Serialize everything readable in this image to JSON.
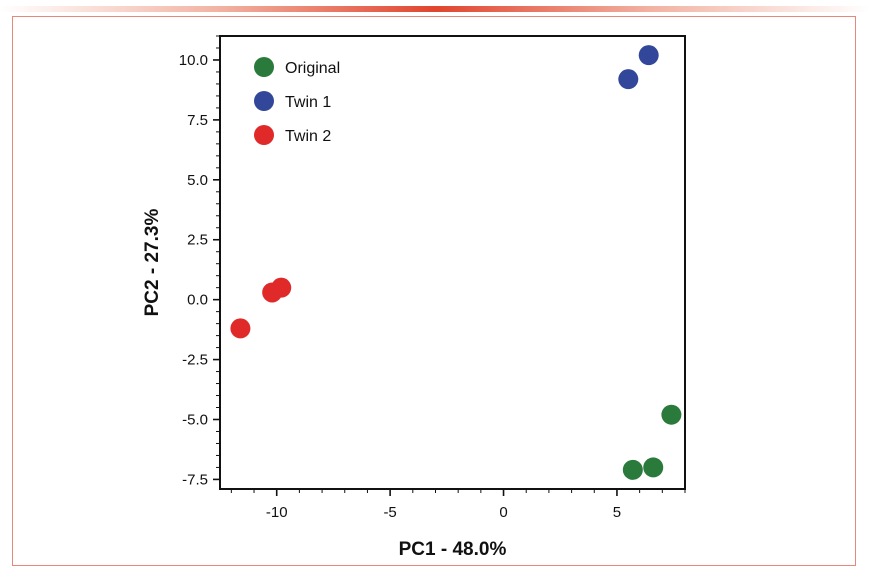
{
  "chart_data": {
    "type": "scatter",
    "xlabel": "PC1 - 48.0%",
    "ylabel": "PC2 - 27.3%",
    "xlim": [
      -12.5,
      8.0
    ],
    "ylim": [
      -7.9,
      11.0
    ],
    "x_ticks": [
      -10,
      -5,
      0,
      5
    ],
    "x_tick_labels": [
      "-10",
      "-5",
      "0",
      "5"
    ],
    "y_ticks": [
      10.0,
      7.5,
      5.0,
      2.5,
      0.0,
      -2.5,
      -5.0,
      -7.5
    ],
    "y_tick_labels": [
      "10.0",
      "7.5",
      "5.0",
      "2.5",
      "0.0",
      "-2.5",
      "-5.0",
      "-7.5"
    ],
    "grid": false,
    "legend_position": "top-left",
    "series": [
      {
        "name": "Original",
        "color": "#2a7a3b",
        "points": [
          [
            7.4,
            -4.8
          ],
          [
            6.6,
            -7.0
          ],
          [
            5.7,
            -7.1
          ]
        ]
      },
      {
        "name": "Twin 1",
        "color": "#33479a",
        "points": [
          [
            6.4,
            10.2
          ],
          [
            5.5,
            9.2
          ]
        ]
      },
      {
        "name": "Twin 2",
        "color": "#e02a2a",
        "points": [
          [
            -9.8,
            0.5
          ],
          [
            -10.2,
            0.3
          ],
          [
            -11.6,
            -1.2
          ]
        ]
      }
    ]
  }
}
